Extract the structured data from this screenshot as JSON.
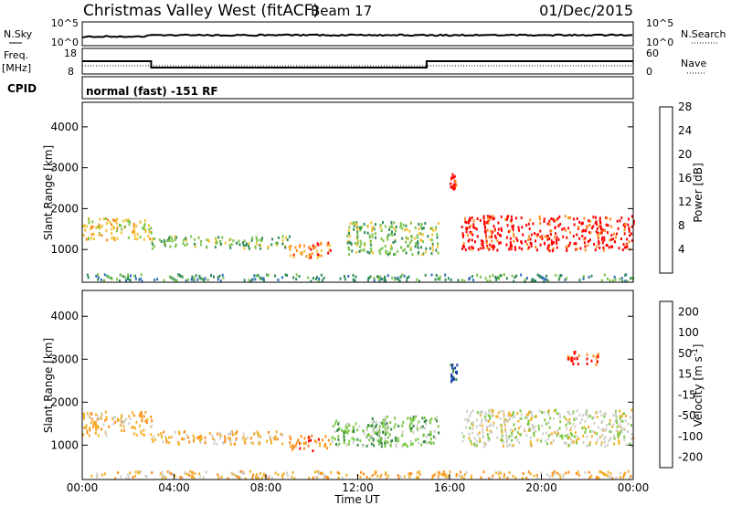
{
  "header": {
    "title": "Christmas Valley West (fitACF)",
    "beam": "Beam 17",
    "date": "01/Dec/2015"
  },
  "aux_panels": {
    "nsky_label": "N.Sky",
    "nsky_ticks": [
      "10^5",
      "10^0"
    ],
    "nsearch_label": "N.Search",
    "nsearch_ticks": [
      "10^5",
      "10^0"
    ],
    "freq_label": "Freq.",
    "freq_unit": "[MHz]",
    "freq_ticks": [
      "18",
      "8"
    ],
    "nave_label": "Nave",
    "nave_ticks": [
      "60",
      "0"
    ],
    "cpid_label": "CPID",
    "cpid_text": "normal (fast) -151 RF"
  },
  "chart_data": [
    {
      "type": "heatmap",
      "name": "power",
      "ylabel": "Slant Range [km]",
      "ylim": [
        200,
        4600
      ],
      "xlim": [
        0,
        24
      ],
      "yticks": [
        1000,
        2000,
        3000,
        4000
      ],
      "colorbar": {
        "label": "Power [dB]",
        "ticks": [
          "4",
          "8",
          "12",
          "16",
          "20",
          "24",
          "28"
        ],
        "colors": [
          "#0000ff",
          "#2f6fb5",
          "#2e8b57",
          "#7cc44a",
          "#f2c230",
          "#ff8c1a",
          "#ff0000"
        ]
      },
      "regions": [
        {
          "t": [
            0.0,
            3.0
          ],
          "r": [
            1250,
            1800
          ],
          "level": 4
        },
        {
          "t": [
            3.0,
            9.0
          ],
          "r": [
            1050,
            1350
          ],
          "level": 3
        },
        {
          "t": [
            9.0,
            10.8
          ],
          "r": [
            800,
            1200
          ],
          "level": 5
        },
        {
          "t": [
            11.5,
            15.5
          ],
          "r": [
            900,
            1700
          ],
          "level": 3
        },
        {
          "t": [
            16.5,
            24.0
          ],
          "r": [
            1000,
            1850
          ],
          "level": 6
        },
        {
          "t": [
            16.0,
            16.3
          ],
          "r": [
            2500,
            2900
          ],
          "level": 6
        },
        {
          "t": [
            0.0,
            24.0
          ],
          "r": [
            250,
            420
          ],
          "level": 2
        }
      ]
    },
    {
      "type": "heatmap",
      "name": "velocity",
      "ylabel": "Slant Range [km]",
      "xlabel": "Time UT",
      "ylim": [
        200,
        4600
      ],
      "xlim": [
        0,
        24
      ],
      "yticks": [
        1000,
        2000,
        3000,
        4000
      ],
      "xtick_labels": [
        "00:00",
        "04:00",
        "08:00",
        "12:00",
        "16:00",
        "20:00",
        "00:00"
      ],
      "colorbar": {
        "label": "Velocity [m s^-1]",
        "ticks": [
          "200",
          "100",
          "50",
          "15",
          "-15",
          "-50",
          "-100",
          "-200"
        ],
        "colors": [
          "#1c3fa8",
          "#3a8a4a",
          "#7ac943",
          "#cfcfc9",
          "#f2b12a",
          "#ff8c1a",
          "#ff0000"
        ]
      },
      "regions": [
        {
          "t": [
            0.0,
            3.0
          ],
          "r": [
            1250,
            1800
          ],
          "level": 4
        },
        {
          "t": [
            3.0,
            9.0
          ],
          "r": [
            1050,
            1350
          ],
          "level": 4
        },
        {
          "t": [
            9.0,
            10.8
          ],
          "r": [
            900,
            1250
          ],
          "level": 5
        },
        {
          "t": [
            10.8,
            13.5
          ],
          "r": [
            1000,
            1600
          ],
          "level": 2
        },
        {
          "t": [
            12.5,
            15.5
          ],
          "r": [
            1000,
            1700
          ],
          "level": 2
        },
        {
          "t": [
            16.5,
            24.0
          ],
          "r": [
            1000,
            1850
          ],
          "level": 3
        },
        {
          "t": [
            21.0,
            22.5
          ],
          "r": [
            2900,
            3200
          ],
          "level": 6
        },
        {
          "t": [
            16.0,
            16.3
          ],
          "r": [
            2500,
            2900
          ],
          "level": 0
        },
        {
          "t": [
            0.0,
            24.0
          ],
          "r": [
            250,
            420
          ],
          "level": 4
        }
      ]
    }
  ],
  "freq_series": {
    "t": [
      0,
      3,
      3,
      15,
      15,
      24
    ],
    "mhz": [
      13,
      13,
      10.5,
      10.5,
      13,
      13
    ]
  }
}
